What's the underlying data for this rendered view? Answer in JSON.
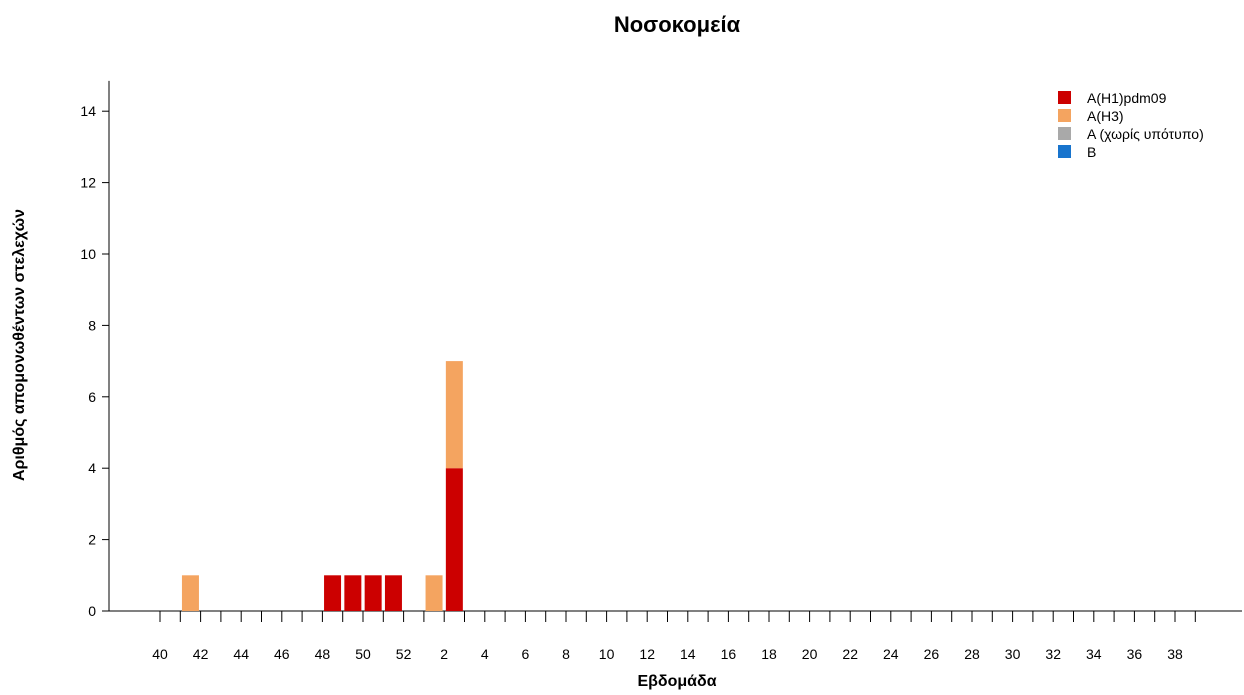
{
  "chart_data": {
    "type": "bar",
    "stacked": true,
    "title": "Νοσοκομεία",
    "xlabel": "Εβδομάδα",
    "ylabel": "Αριθμός απομονωθέντων στελεχών",
    "weeks": [
      40,
      41,
      42,
      43,
      44,
      45,
      46,
      47,
      48,
      49,
      50,
      51,
      52,
      1,
      2,
      3,
      4,
      5,
      6,
      7,
      8,
      9,
      10,
      11,
      12,
      13,
      14,
      15,
      16,
      17,
      18,
      19,
      20,
      21,
      22,
      23,
      24,
      25,
      26,
      27,
      28,
      29,
      30,
      31,
      32,
      33,
      34,
      35,
      36,
      37,
      38,
      39
    ],
    "x_tick_labels": [
      "40",
      "42",
      "44",
      "46",
      "48",
      "50",
      "52",
      "2",
      "4",
      "6",
      "8",
      "10",
      "12",
      "14",
      "16",
      "18",
      "20",
      "22",
      "24",
      "26",
      "28",
      "30",
      "32",
      "34",
      "36",
      "38"
    ],
    "y_ticks": [
      0,
      2,
      4,
      6,
      8,
      10,
      12,
      14
    ],
    "ylim": [
      0,
      15
    ],
    "grid": false,
    "legend_position": "top-right",
    "series": [
      {
        "name": "A(H1)pdm09",
        "color": "#cc0000",
        "values": [
          0,
          0,
          0,
          0,
          0,
          0,
          0,
          0,
          1,
          1,
          1,
          1,
          0,
          0,
          4,
          0,
          0,
          0,
          0,
          0,
          0,
          0,
          0,
          0,
          0,
          0,
          0,
          0,
          0,
          0,
          0,
          0,
          0,
          0,
          0,
          0,
          0,
          0,
          0,
          0,
          0,
          0,
          0,
          0,
          0,
          0,
          0,
          0,
          0,
          0,
          0,
          0
        ]
      },
      {
        "name": "A(H3)",
        "color": "#f4a460",
        "values": [
          0,
          1,
          0,
          0,
          0,
          0,
          0,
          0,
          0,
          0,
          0,
          0,
          0,
          1,
          3,
          0,
          0,
          0,
          0,
          0,
          0,
          0,
          0,
          0,
          0,
          0,
          0,
          0,
          0,
          0,
          0,
          0,
          0,
          0,
          0,
          0,
          0,
          0,
          0,
          0,
          0,
          0,
          0,
          0,
          0,
          0,
          0,
          0,
          0,
          0,
          0,
          0
        ]
      },
      {
        "name": "A (χωρίς υπότυπο)",
        "color": "#a9a9a9",
        "values": [
          0,
          0,
          0,
          0,
          0,
          0,
          0,
          0,
          0,
          0,
          0,
          0,
          0,
          0,
          0,
          0,
          0,
          0,
          0,
          0,
          0,
          0,
          0,
          0,
          0,
          0,
          0,
          0,
          0,
          0,
          0,
          0,
          0,
          0,
          0,
          0,
          0,
          0,
          0,
          0,
          0,
          0,
          0,
          0,
          0,
          0,
          0,
          0,
          0,
          0,
          0,
          0
        ]
      },
      {
        "name": "B",
        "color": "#1874cd",
        "values": [
          0,
          0,
          0,
          0,
          0,
          0,
          0,
          0,
          0,
          0,
          0,
          0,
          0,
          0,
          0,
          0,
          0,
          0,
          0,
          0,
          0,
          0,
          0,
          0,
          0,
          0,
          0,
          0,
          0,
          0,
          0,
          0,
          0,
          0,
          0,
          0,
          0,
          0,
          0,
          0,
          0,
          0,
          0,
          0,
          0,
          0,
          0,
          0,
          0,
          0,
          0,
          0
        ]
      }
    ]
  }
}
